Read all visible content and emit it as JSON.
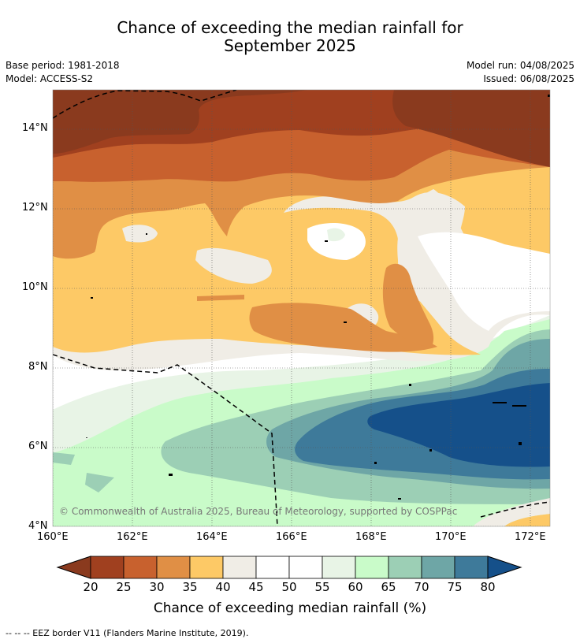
{
  "title_line1": "Chance of exceeding the median rainfall for",
  "title_line2": "September 2025",
  "meta": {
    "base_period": "Base period: 1981-2018",
    "model": "Model: ACCESS-S2",
    "model_run": "Model run: 04/08/2025",
    "issued": "Issued: 06/08/2025"
  },
  "map": {
    "lat_labels": [
      "14°N",
      "12°N",
      "10°N",
      "8°N",
      "6°N",
      "4°N"
    ],
    "lon_labels": [
      "160°E",
      "162°E",
      "164°E",
      "166°E",
      "168°E",
      "170°E",
      "172°E"
    ],
    "copyright": "© Commonwealth of Australia 2025, Bureau of Meteorology, supported by COSPPac"
  },
  "colorbar": {
    "title": "Chance of exceeding median rainfall (%)",
    "ticks": [
      "20",
      "25",
      "30",
      "35",
      "40",
      "45",
      "50",
      "55",
      "60",
      "65",
      "70",
      "75",
      "80"
    ],
    "colors": [
      "#a0401f",
      "#c8612e",
      "#e08f45",
      "#fdc966",
      "#f0ede6",
      "#ffffff",
      "#ffffff",
      "#e8f4e6",
      "#c9fbc9",
      "#9ccfb5",
      "#6ea6a6",
      "#3e7a9a"
    ],
    "under_color": "#8a3a1e",
    "over_color": "#15508a"
  },
  "footnote": "--  --  -- EEZ border V11 (Flanders Marine Institute, 2019)."
}
